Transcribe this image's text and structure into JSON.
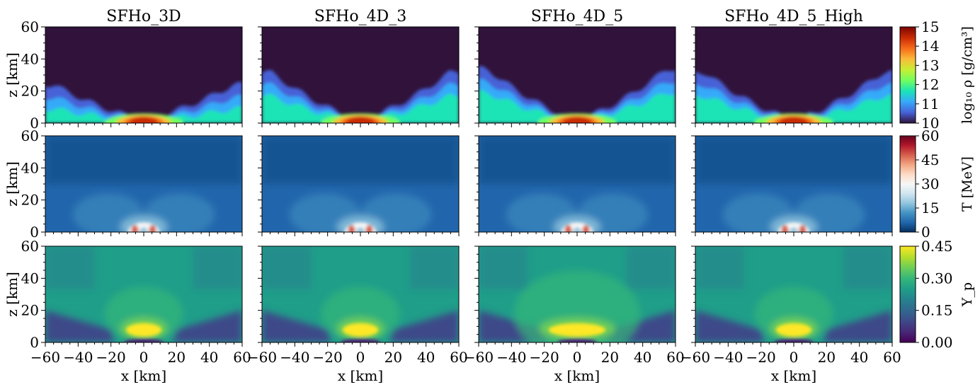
{
  "chart_data": {
    "type": "heatmap",
    "columns": [
      "SFHo_3D",
      "SFHo_4D_3",
      "SFHo_4D_5",
      "SFHo_4D_5_High"
    ],
    "xlabel": "x [km]",
    "ylabel": "z [km]",
    "xlim": [
      -60,
      60
    ],
    "ylim": [
      0,
      60
    ],
    "xticks": [
      -60,
      -40,
      -20,
      0,
      20,
      40,
      60
    ],
    "yticks": [
      0,
      20,
      40,
      60
    ],
    "rows": [
      {
        "field": "density",
        "colorbar_label": "log₁₀ ρ [g/cm³]",
        "cmap": "turbo",
        "clim": [
          10,
          15
        ],
        "ticks": [
          "10",
          "11",
          "12",
          "13",
          "14",
          "15"
        ],
        "colors": [
          "#30123b",
          "#4662d7",
          "#36aaf9",
          "#1ae4b6",
          "#72fe5e",
          "#c7ef34",
          "#faba39",
          "#f66b19",
          "#ca2a04",
          "#7a0403"
        ]
      },
      {
        "field": "temperature",
        "colorbar_label": "T [MeV]",
        "cmap": "RdBu_r",
        "clim": [
          0,
          60
        ],
        "ticks": [
          "0",
          "15",
          "30",
          "45",
          "60"
        ],
        "colors": [
          "#053061",
          "#2166ac",
          "#4393c3",
          "#92c5de",
          "#d1e5f0",
          "#f7f7f7",
          "#fddbc7",
          "#f4a582",
          "#d6604d",
          "#b2182b",
          "#67001f"
        ]
      },
      {
        "field": "proton_fraction",
        "colorbar_label": "Y_p",
        "cmap": "viridis",
        "clim": [
          0,
          0.45
        ],
        "ticks": [
          "0.00",
          "0.15",
          "0.30",
          "0.45"
        ],
        "colors": [
          "#440154",
          "#482878",
          "#3e4989",
          "#31688e",
          "#26828e",
          "#1f9e89",
          "#35b779",
          "#6ece58",
          "#b5de2b",
          "#fde725"
        ]
      }
    ]
  }
}
